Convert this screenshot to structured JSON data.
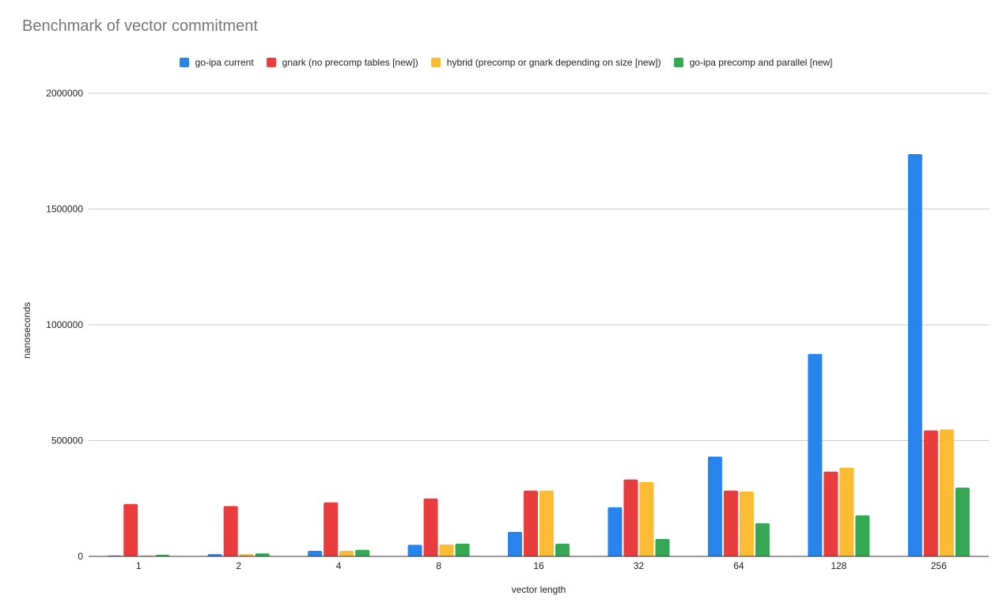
{
  "chart_data": {
    "type": "bar",
    "title": "Benchmark of vector commitment",
    "xlabel": "vector length",
    "ylabel": "nanoseconds",
    "ylim": [
      0,
      2000000
    ],
    "yticks": [
      0,
      500000,
      1000000,
      1500000,
      2000000
    ],
    "grid": true,
    "legend_position": "top",
    "categories": [
      "1",
      "2",
      "4",
      "8",
      "16",
      "32",
      "64",
      "128",
      "256"
    ],
    "series": [
      {
        "name": "go-ipa current",
        "color": "#2684ea",
        "values": [
          4000,
          10000,
          24000,
          50000,
          106000,
          212000,
          431000,
          874000,
          1737000
        ]
      },
      {
        "name": "gnark (no precomp tables [new])",
        "color": "#ea3c3c",
        "values": [
          226000,
          217000,
          233000,
          250000,
          284000,
          332000,
          284000,
          366000,
          544000
        ]
      },
      {
        "name": "hybrid (precomp or gnark depending on size [new])",
        "color": "#fbbc33",
        "values": [
          4000,
          10000,
          24000,
          51000,
          284000,
          321000,
          280000,
          383000,
          548000
        ]
      },
      {
        "name": "go-ipa precomp and parallel [new]",
        "color": "#34a853",
        "values": [
          7000,
          13000,
          28000,
          55000,
          55000,
          75000,
          143000,
          177000,
          297000
        ]
      }
    ]
  }
}
